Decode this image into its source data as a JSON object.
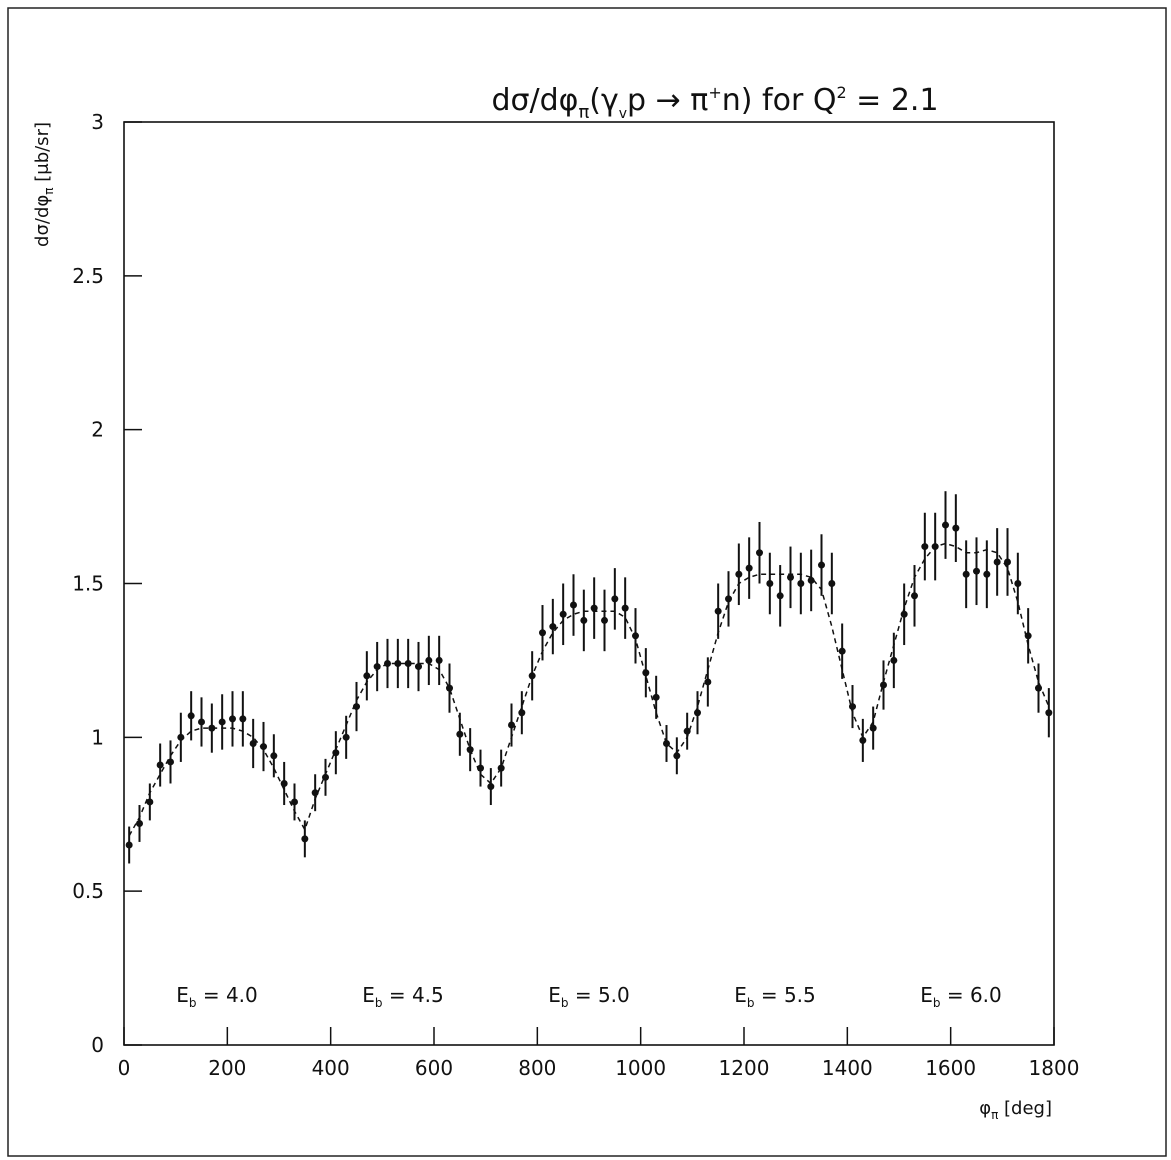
{
  "chart_data": {
    "type": "errorbar",
    "title": [
      "dσ/dφ",
      "π",
      "(γ",
      "v",
      "p → π",
      "+",
      "n)  for  Q",
      "2",
      " = 2.1"
    ],
    "y_label": [
      "dσ/dφ",
      "π",
      " [μb/sr]"
    ],
    "x_label": [
      "φ",
      "π",
      " [deg]"
    ],
    "annotations": [
      [
        "E",
        "b",
        " = 4.0"
      ],
      [
        "E",
        "b",
        " = 4.5"
      ],
      [
        "E",
        "b",
        " = 5.0"
      ],
      [
        "E",
        "b",
        " = 5.5"
      ],
      [
        "E",
        "b",
        " = 6.0"
      ]
    ],
    "xlim": [
      0,
      1800
    ],
    "ylim": [
      0,
      3
    ],
    "xticks": [
      0,
      200,
      400,
      600,
      800,
      1000,
      1200,
      1400,
      1600,
      1800
    ],
    "yticks": [
      0,
      0.5,
      1,
      1.5,
      2,
      2.5,
      3
    ],
    "color": "#111111",
    "x": [
      10,
      30,
      50,
      70,
      90,
      110,
      130,
      150,
      170,
      190,
      210,
      230,
      250,
      270,
      290,
      310,
      330,
      350,
      370,
      390,
      410,
      430,
      450,
      470,
      490,
      510,
      530,
      550,
      570,
      590,
      610,
      630,
      650,
      670,
      690,
      710,
      730,
      750,
      770,
      790,
      810,
      830,
      850,
      870,
      890,
      910,
      930,
      950,
      970,
      990,
      1010,
      1030,
      1050,
      1070,
      1090,
      1110,
      1130,
      1150,
      1170,
      1190,
      1210,
      1230,
      1250,
      1270,
      1290,
      1310,
      1330,
      1350,
      1370,
      1390,
      1410,
      1430,
      1450,
      1470,
      1490,
      1510,
      1530,
      1550,
      1570,
      1590,
      1610,
      1630,
      1650,
      1670,
      1690,
      1710,
      1730,
      1750,
      1770,
      1790
    ],
    "values": [
      0.65,
      0.72,
      0.79,
      0.91,
      0.92,
      1.0,
      1.07,
      1.05,
      1.03,
      1.05,
      1.06,
      1.06,
      0.98,
      0.97,
      0.94,
      0.85,
      0.79,
      0.67,
      0.82,
      0.87,
      0.95,
      1.0,
      1.1,
      1.2,
      1.23,
      1.24,
      1.24,
      1.24,
      1.23,
      1.25,
      1.25,
      1.16,
      1.01,
      0.96,
      0.9,
      0.84,
      0.9,
      1.04,
      1.08,
      1.2,
      1.34,
      1.36,
      1.4,
      1.43,
      1.38,
      1.42,
      1.38,
      1.45,
      1.42,
      1.33,
      1.21,
      1.13,
      0.98,
      0.94,
      1.02,
      1.08,
      1.18,
      1.41,
      1.45,
      1.53,
      1.55,
      1.6,
      1.5,
      1.46,
      1.52,
      1.5,
      1.51,
      1.56,
      1.5,
      1.28,
      1.1,
      0.99,
      1.03,
      1.17,
      1.25,
      1.4,
      1.46,
      1.62,
      1.62,
      1.69,
      1.68,
      1.53,
      1.54,
      1.53,
      1.57,
      1.57,
      1.5,
      1.33,
      1.16,
      1.08
    ],
    "errors": [
      0.06,
      0.06,
      0.06,
      0.07,
      0.07,
      0.08,
      0.08,
      0.08,
      0.08,
      0.09,
      0.09,
      0.09,
      0.08,
      0.08,
      0.07,
      0.07,
      0.06,
      0.06,
      0.06,
      0.06,
      0.07,
      0.07,
      0.08,
      0.08,
      0.08,
      0.08,
      0.08,
      0.08,
      0.08,
      0.08,
      0.08,
      0.08,
      0.07,
      0.07,
      0.06,
      0.06,
      0.06,
      0.07,
      0.07,
      0.08,
      0.09,
      0.09,
      0.1,
      0.1,
      0.1,
      0.1,
      0.1,
      0.1,
      0.1,
      0.09,
      0.08,
      0.07,
      0.06,
      0.06,
      0.06,
      0.07,
      0.08,
      0.09,
      0.09,
      0.1,
      0.1,
      0.1,
      0.1,
      0.1,
      0.1,
      0.1,
      0.1,
      0.1,
      0.1,
      0.09,
      0.07,
      0.07,
      0.07,
      0.08,
      0.09,
      0.1,
      0.1,
      0.11,
      0.11,
      0.11,
      0.11,
      0.11,
      0.11,
      0.11,
      0.11,
      0.11,
      0.1,
      0.09,
      0.08,
      0.08
    ],
    "fit": [
      0.68,
      0.74,
      0.82,
      0.88,
      0.94,
      0.99,
      1.02,
      1.03,
      1.03,
      1.03,
      1.03,
      1.02,
      1.0,
      0.96,
      0.9,
      0.83,
      0.76,
      0.7,
      0.8,
      0.88,
      0.96,
      1.04,
      1.12,
      1.18,
      1.22,
      1.24,
      1.24,
      1.24,
      1.24,
      1.24,
      1.22,
      1.16,
      1.06,
      0.96,
      0.88,
      0.85,
      0.9,
      1.0,
      1.1,
      1.2,
      1.28,
      1.34,
      1.38,
      1.4,
      1.41,
      1.41,
      1.41,
      1.41,
      1.39,
      1.32,
      1.2,
      1.08,
      0.98,
      0.95,
      1.0,
      1.1,
      1.22,
      1.34,
      1.44,
      1.5,
      1.52,
      1.53,
      1.53,
      1.53,
      1.53,
      1.53,
      1.52,
      1.48,
      1.36,
      1.22,
      1.08,
      1.0,
      1.05,
      1.18,
      1.3,
      1.42,
      1.52,
      1.58,
      1.62,
      1.63,
      1.62,
      1.6,
      1.6,
      1.61,
      1.6,
      1.55,
      1.44,
      1.3,
      1.18,
      1.1
    ]
  }
}
